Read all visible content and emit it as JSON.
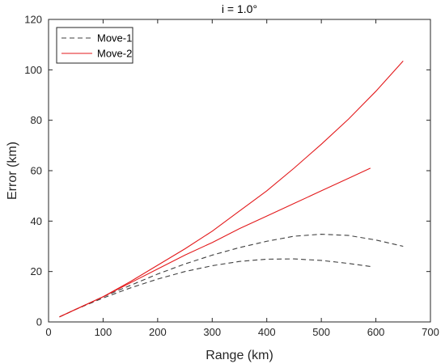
{
  "chart_data": {
    "type": "line",
    "title": "i = 1.0°",
    "xlabel": "Range (km)",
    "ylabel": "Error (km)",
    "xlim": [
      0,
      700
    ],
    "ylim": [
      0,
      120
    ],
    "xticks": [
      0,
      100,
      200,
      300,
      400,
      500,
      600,
      700
    ],
    "yticks": [
      0,
      20,
      40,
      60,
      80,
      100,
      120
    ],
    "grid": false,
    "legend_position": "top-left",
    "legend": [
      {
        "label": "Move-1",
        "color": "#404040",
        "style": "dashed"
      },
      {
        "label": "Move-2",
        "color": "#e31a1c",
        "style": "solid"
      }
    ],
    "series": [
      {
        "name": "Move-1",
        "color": "#404040",
        "style": "dashed",
        "x": [
          20,
          50,
          100,
          150,
          200,
          250,
          300,
          350,
          400,
          450,
          500,
          550,
          600,
          650
        ],
        "y": [
          2,
          5,
          10,
          14.5,
          19,
          23,
          26.5,
          29.5,
          32,
          34,
          34.8,
          34.3,
          32.5,
          30
        ]
      },
      {
        "name": "Move-1",
        "color": "#404040",
        "style": "dashed",
        "x": [
          20,
          50,
          100,
          150,
          200,
          250,
          300,
          350,
          400,
          450,
          500,
          550,
          590
        ],
        "y": [
          2,
          5,
          9.5,
          13.5,
          17,
          20,
          22.3,
          24,
          24.9,
          25,
          24.4,
          23.2,
          22
        ]
      },
      {
        "name": "Move-2",
        "color": "#e31a1c",
        "style": "solid",
        "x": [
          20,
          50,
          100,
          150,
          200,
          250,
          300,
          350,
          400,
          450,
          500,
          550,
          600,
          650
        ],
        "y": [
          2,
          5,
          10,
          16,
          22.5,
          29,
          36,
          44,
          52,
          61,
          70.5,
          80.5,
          91.5,
          103.5
        ]
      },
      {
        "name": "Move-2",
        "color": "#e31a1c",
        "style": "solid",
        "x": [
          20,
          50,
          100,
          150,
          200,
          250,
          300,
          350,
          400,
          450,
          500,
          550,
          590
        ],
        "y": [
          2,
          5,
          10,
          15.5,
          21,
          26.5,
          31.5,
          37,
          42,
          47,
          52,
          57,
          61
        ]
      }
    ]
  }
}
